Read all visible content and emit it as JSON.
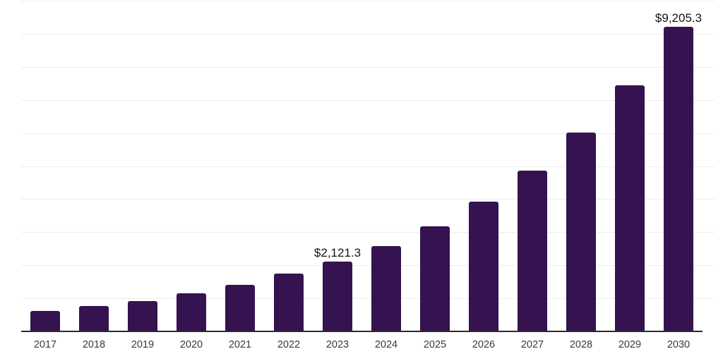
{
  "chart_data": {
    "type": "bar",
    "categories": [
      "2017",
      "2018",
      "2019",
      "2020",
      "2021",
      "2022",
      "2023",
      "2024",
      "2025",
      "2026",
      "2027",
      "2028",
      "2029",
      "2030"
    ],
    "values": [
      625,
      775,
      925,
      1145,
      1415,
      1740,
      2121.3,
      2580,
      3185,
      3925,
      4855,
      6005,
      7435,
      9205.3
    ],
    "annotations": [
      {
        "category": "2023",
        "text": "$2,121.3"
      },
      {
        "category": "2030",
        "text": "$9,205.3"
      }
    ],
    "ylim": [
      0,
      10000
    ],
    "gridline_step": 1000,
    "grid": "horizontal",
    "legend": "none",
    "colors": {
      "bar": "#341350",
      "gridline": "#ededed",
      "axis_line": "#2b2b2b",
      "tick_label": "#3a3a3a",
      "value_label": "#141414",
      "background": "#ffffff"
    }
  }
}
